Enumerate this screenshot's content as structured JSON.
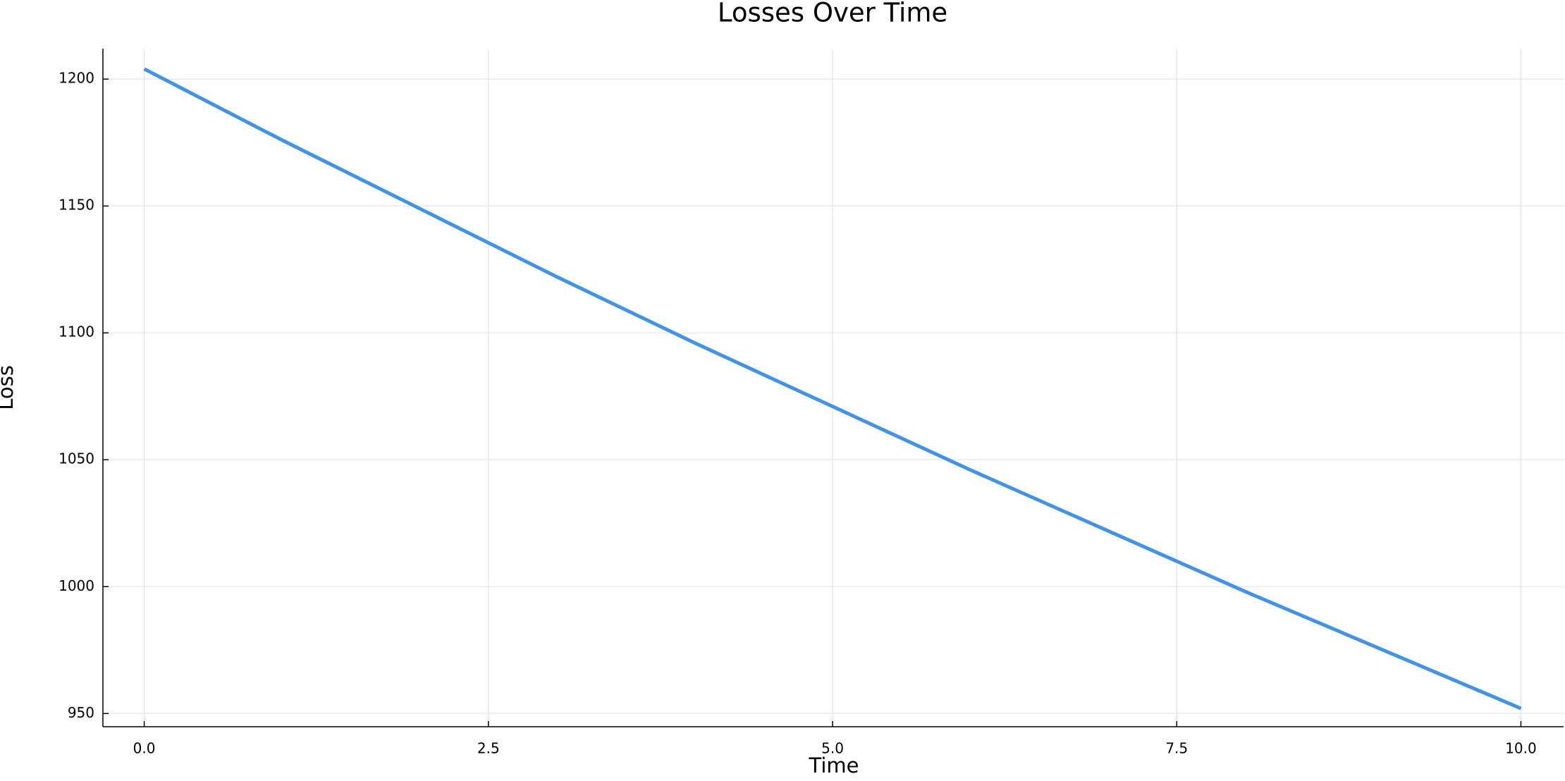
{
  "chart_data": {
    "type": "line",
    "title": "Losses Over Time",
    "x_label": "Time",
    "y_label": "Loss",
    "x": [
      0,
      1,
      2,
      3,
      4,
      5,
      6,
      7,
      8,
      9,
      10
    ],
    "series": [
      {
        "color": "#4292e6",
        "values": [
          1204,
          1176,
          1149,
          1122,
          1096,
          1071,
          1046,
          1022,
          998,
          975,
          952
        ]
      }
    ],
    "xlim": [
      -0.3,
      10.31
    ],
    "ylim": [
      944.8,
      1212
    ],
    "xticks": [
      {
        "value": 0,
        "label": "0.0"
      },
      {
        "value": 2.5,
        "label": "2.5"
      },
      {
        "value": 5,
        "label": "5.0"
      },
      {
        "value": 7.5,
        "label": "7.5"
      },
      {
        "value": 10,
        "label": "10.0"
      }
    ],
    "yticks": [
      950,
      1000,
      1050,
      1100,
      1150,
      1200
    ],
    "grid": true
  }
}
